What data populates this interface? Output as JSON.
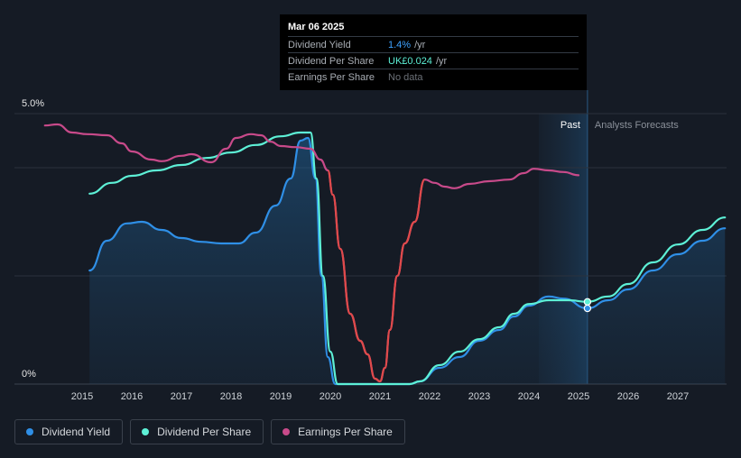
{
  "tooltip": {
    "date": "Mar 06 2025",
    "rows": [
      {
        "label": "Dividend Yield",
        "value": "1.4%",
        "unit": "/yr"
      },
      {
        "label": "Dividend Per Share",
        "value": "UK£0.024",
        "unit": "/yr"
      },
      {
        "label": "Earnings Per Share",
        "value": "No data",
        "unit": ""
      }
    ]
  },
  "legend": [
    {
      "label": "Dividend Yield",
      "color": "#2f8fe6"
    },
    {
      "label": "Dividend Per Share",
      "color": "#5df0d6"
    },
    {
      "label": "Earnings Per Share",
      "color": "#c84a8a"
    }
  ],
  "chart_data": {
    "type": "line",
    "y_tick_labels": [
      "5.0%",
      "0%"
    ],
    "ylim": [
      0,
      5.2
    ],
    "xlim": [
      2014.25,
      2027.95
    ],
    "x_ticks": [
      "2015",
      "2016",
      "2017",
      "2018",
      "2019",
      "2020",
      "2021",
      "2022",
      "2023",
      "2024",
      "2025",
      "2026",
      "2027"
    ],
    "past_region": {
      "label": "Past",
      "start": 2024.2,
      "end": 2025.18
    },
    "forecast_label": "Analysts Forecasts",
    "grid": true,
    "series": [
      {
        "name": "Dividend Yield",
        "color": "#2f8fe6",
        "fill": true,
        "points": [
          [
            2015.15,
            2.1
          ],
          [
            2015.5,
            2.65
          ],
          [
            2015.9,
            2.97
          ],
          [
            2016.2,
            3.0
          ],
          [
            2016.6,
            2.85
          ],
          [
            2017.0,
            2.7
          ],
          [
            2017.4,
            2.63
          ],
          [
            2017.8,
            2.6
          ],
          [
            2018.15,
            2.6
          ],
          [
            2018.5,
            2.8
          ],
          [
            2018.9,
            3.3
          ],
          [
            2019.2,
            3.8
          ],
          [
            2019.4,
            4.5
          ],
          [
            2019.55,
            4.55
          ],
          [
            2019.7,
            3.8
          ],
          [
            2019.82,
            2.0
          ],
          [
            2019.95,
            0.5
          ],
          [
            2020.1,
            0.0
          ],
          [
            2021.6,
            0.0
          ],
          [
            2021.8,
            0.05
          ],
          [
            2022.2,
            0.3
          ],
          [
            2022.6,
            0.5
          ],
          [
            2023.0,
            0.8
          ],
          [
            2023.4,
            1.0
          ],
          [
            2023.7,
            1.25
          ],
          [
            2024.0,
            1.45
          ],
          [
            2024.4,
            1.62
          ],
          [
            2024.7,
            1.58
          ],
          [
            2025.18,
            1.4
          ],
          [
            2025.6,
            1.55
          ],
          [
            2026.0,
            1.75
          ],
          [
            2026.5,
            2.1
          ],
          [
            2027.0,
            2.4
          ],
          [
            2027.5,
            2.65
          ],
          [
            2027.95,
            2.88
          ]
        ]
      },
      {
        "name": "Dividend Per Share",
        "color": "#5df0d6",
        "fill": false,
        "points": [
          [
            2015.15,
            3.52
          ],
          [
            2015.6,
            3.72
          ],
          [
            2016.0,
            3.85
          ],
          [
            2016.5,
            3.95
          ],
          [
            2017.0,
            4.05
          ],
          [
            2017.5,
            4.18
          ],
          [
            2018.0,
            4.28
          ],
          [
            2018.5,
            4.42
          ],
          [
            2019.0,
            4.58
          ],
          [
            2019.4,
            4.65
          ],
          [
            2019.6,
            4.65
          ],
          [
            2019.72,
            3.8
          ],
          [
            2019.85,
            2.0
          ],
          [
            2020.0,
            0.6
          ],
          [
            2020.15,
            0.0
          ],
          [
            2021.6,
            0.0
          ],
          [
            2021.8,
            0.05
          ],
          [
            2022.2,
            0.35
          ],
          [
            2022.6,
            0.6
          ],
          [
            2023.0,
            0.83
          ],
          [
            2023.4,
            1.05
          ],
          [
            2023.7,
            1.3
          ],
          [
            2024.0,
            1.48
          ],
          [
            2024.4,
            1.55
          ],
          [
            2024.8,
            1.55
          ],
          [
            2025.18,
            1.52
          ],
          [
            2025.6,
            1.62
          ],
          [
            2026.0,
            1.85
          ],
          [
            2026.5,
            2.25
          ],
          [
            2027.0,
            2.58
          ],
          [
            2027.5,
            2.85
          ],
          [
            2027.95,
            3.08
          ]
        ]
      },
      {
        "name": "Earnings Per Share",
        "color": "#c84a8a",
        "fill": false,
        "points": [
          [
            2014.25,
            4.78
          ],
          [
            2014.5,
            4.8
          ],
          [
            2014.8,
            4.65
          ],
          [
            2015.1,
            4.62
          ],
          [
            2015.5,
            4.6
          ],
          [
            2015.8,
            4.45
          ],
          [
            2016.0,
            4.3
          ],
          [
            2016.4,
            4.15
          ],
          [
            2016.6,
            4.12
          ],
          [
            2017.0,
            4.22
          ],
          [
            2017.2,
            4.25
          ],
          [
            2017.6,
            4.1
          ],
          [
            2017.9,
            4.35
          ],
          [
            2018.1,
            4.55
          ],
          [
            2018.4,
            4.62
          ],
          [
            2018.6,
            4.6
          ],
          [
            2018.8,
            4.48
          ],
          [
            2019.0,
            4.4
          ],
          [
            2019.3,
            4.38
          ],
          [
            2019.6,
            4.35
          ],
          [
            2019.8,
            4.15
          ],
          [
            2019.95,
            3.95
          ],
          [
            2020.05,
            3.5
          ],
          [
            2020.2,
            2.5
          ],
          [
            2020.4,
            1.3
          ],
          [
            2020.6,
            0.8
          ],
          [
            2020.75,
            0.55
          ],
          [
            2020.9,
            0.1
          ],
          [
            2021.0,
            0.05
          ],
          [
            2021.1,
            0.3
          ],
          [
            2021.2,
            1.0
          ],
          [
            2021.35,
            2.0
          ],
          [
            2021.5,
            2.6
          ],
          [
            2021.7,
            3.0
          ],
          [
            2021.9,
            3.78
          ],
          [
            2022.1,
            3.72
          ],
          [
            2022.3,
            3.65
          ],
          [
            2022.5,
            3.62
          ],
          [
            2022.8,
            3.7
          ],
          [
            2023.2,
            3.75
          ],
          [
            2023.6,
            3.78
          ],
          [
            2023.9,
            3.9
          ],
          [
            2024.1,
            3.98
          ],
          [
            2024.4,
            3.95
          ],
          [
            2024.7,
            3.92
          ],
          [
            2025.0,
            3.86
          ]
        ]
      }
    ]
  }
}
